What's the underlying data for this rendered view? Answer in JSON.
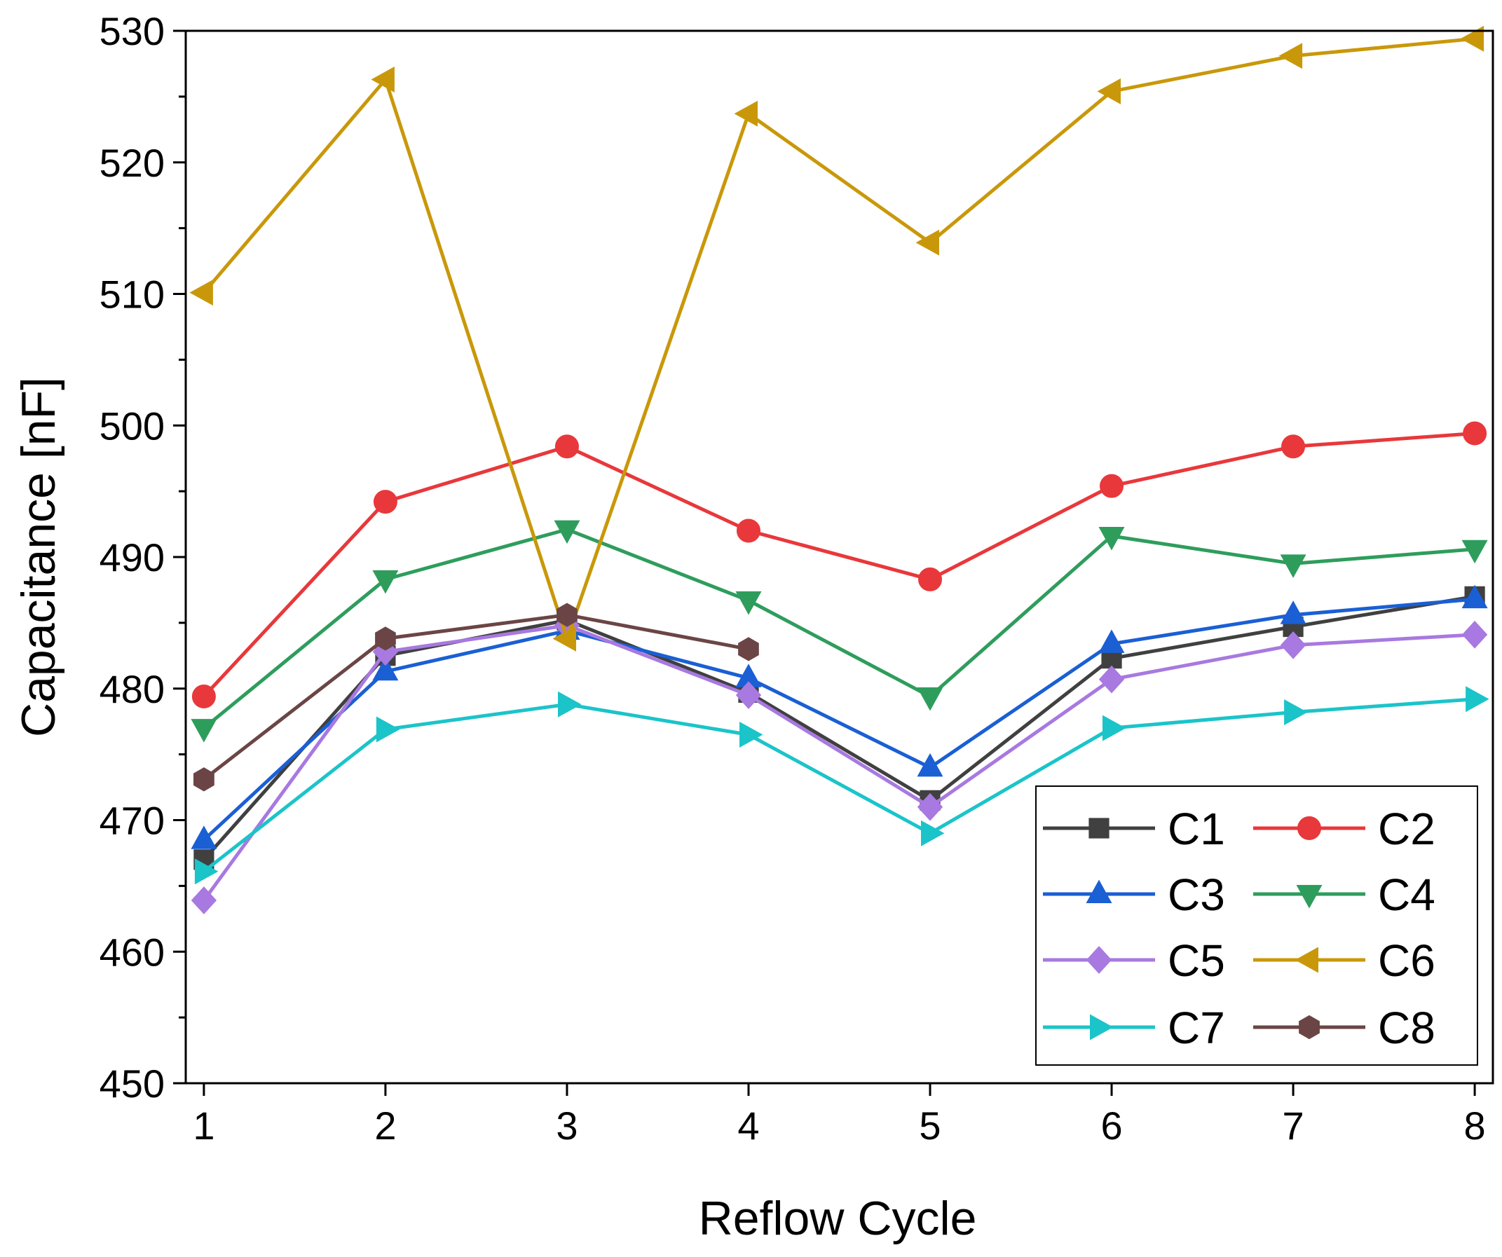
{
  "chart_data": {
    "type": "line",
    "title": "",
    "xlabel": "Reflow Cycle",
    "ylabel": "Capacitance [nF]",
    "x": [
      1,
      2,
      3,
      4,
      5,
      6,
      7,
      8
    ],
    "x_tick_labels": [
      "1",
      "2",
      "3",
      "4",
      "5",
      "6",
      "7",
      "8"
    ],
    "xlim": [
      0.9,
      8.1
    ],
    "ylim": [
      450,
      530
    ],
    "y_ticks": [
      450,
      460,
      470,
      480,
      490,
      500,
      510,
      520,
      530
    ],
    "y_tick_labels": [
      "450",
      "460",
      "470",
      "480",
      "490",
      "500",
      "510",
      "520",
      "530"
    ],
    "grid": false,
    "legend_position": "bottom-right",
    "series": [
      {
        "name": "C1",
        "color": "#404040",
        "marker": "square",
        "values": [
          467.0,
          482.5,
          485.2,
          479.7,
          471.5,
          482.3,
          484.7,
          487.0
        ]
      },
      {
        "name": "C2",
        "color": "#e8383b",
        "marker": "circle",
        "values": [
          479.4,
          494.2,
          498.4,
          492.0,
          488.3,
          495.4,
          498.4,
          499.4
        ]
      },
      {
        "name": "C3",
        "color": "#1a5fd4",
        "marker": "triangle-up",
        "values": [
          468.5,
          481.3,
          484.4,
          480.8,
          474.0,
          483.4,
          485.6,
          486.8
        ]
      },
      {
        "name": "C4",
        "color": "#2e9d5c",
        "marker": "triangle-down",
        "values": [
          477.0,
          488.3,
          492.1,
          486.7,
          479.4,
          491.6,
          489.5,
          490.6
        ]
      },
      {
        "name": "C5",
        "color": "#a879e0",
        "marker": "diamond",
        "values": [
          463.9,
          482.8,
          484.8,
          479.5,
          471.0,
          480.7,
          483.3,
          484.1
        ]
      },
      {
        "name": "C6",
        "color": "#c9980a",
        "marker": "triangle-left",
        "values": [
          510.1,
          526.3,
          483.8,
          523.7,
          513.9,
          525.4,
          528.1,
          529.4
        ]
      },
      {
        "name": "C7",
        "color": "#1bc4c9",
        "marker": "triangle-right",
        "values": [
          466.1,
          476.9,
          478.8,
          476.5,
          469.0,
          477.0,
          478.2,
          479.2
        ]
      },
      {
        "name": "C8",
        "color": "#6b4545",
        "marker": "hexagon",
        "values": [
          473.1,
          483.8,
          485.6,
          483.0,
          null,
          null,
          null,
          null
        ]
      }
    ]
  }
}
